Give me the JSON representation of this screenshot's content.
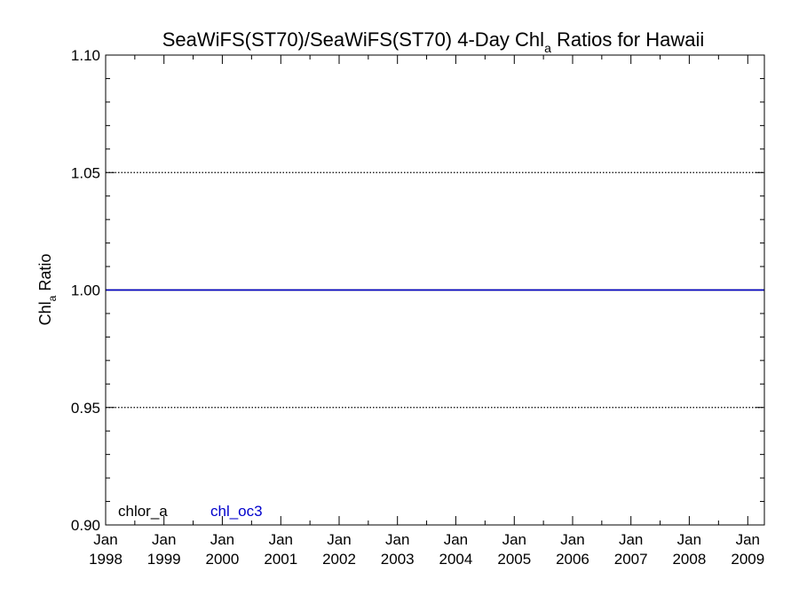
{
  "chart_data": {
    "type": "line",
    "title": {
      "main": "SeaWiFS(ST70)/SeaWiFS(ST70) 4-Day Chl",
      "sub": "a",
      "rest": " Ratios for Hawaii"
    },
    "ylabel": {
      "main": "Chl",
      "sub": "a",
      "rest": " Ratio"
    },
    "xlabel": "",
    "x_axis": {
      "type": "date",
      "range": [
        "1998-01-01",
        "2009-04-15"
      ],
      "ticks": [
        {
          "date": "1998-01-01",
          "month": "Jan",
          "year": "1998"
        },
        {
          "date": "1999-01-01",
          "month": "Jan",
          "year": "1999"
        },
        {
          "date": "2000-01-01",
          "month": "Jan",
          "year": "2000"
        },
        {
          "date": "2001-01-01",
          "month": "Jan",
          "year": "2001"
        },
        {
          "date": "2002-01-01",
          "month": "Jan",
          "year": "2002"
        },
        {
          "date": "2003-01-01",
          "month": "Jan",
          "year": "2003"
        },
        {
          "date": "2004-01-01",
          "month": "Jan",
          "year": "2004"
        },
        {
          "date": "2005-01-01",
          "month": "Jan",
          "year": "2005"
        },
        {
          "date": "2006-01-01",
          "month": "Jan",
          "year": "2006"
        },
        {
          "date": "2007-01-01",
          "month": "Jan",
          "year": "2007"
        },
        {
          "date": "2008-01-01",
          "month": "Jan",
          "year": "2008"
        },
        {
          "date": "2009-01-01",
          "month": "Jan",
          "year": "2009"
        }
      ]
    },
    "y_axis": {
      "range": [
        0.9,
        1.1
      ],
      "ticks": [
        {
          "value": 0.9,
          "label": "0.90"
        },
        {
          "value": 0.95,
          "label": "0.95"
        },
        {
          "value": 1.0,
          "label": "1.00"
        },
        {
          "value": 1.05,
          "label": "1.05"
        },
        {
          "value": 1.1,
          "label": "1.10"
        }
      ],
      "minor_step": 0.01
    },
    "grid": {
      "horizontal_dotted_at": [
        0.95,
        1.05
      ]
    },
    "series": [
      {
        "name": "chlor_a",
        "color": "#000000",
        "points": [
          {
            "x": "1998-01-01",
            "y": 1.0
          },
          {
            "x": "2009-04-15",
            "y": 1.0
          }
        ]
      },
      {
        "name": "chl_oc3",
        "color": "#0000cc",
        "points": [
          {
            "x": "1998-01-01",
            "y": 1.0
          },
          {
            "x": "2009-04-15",
            "y": 1.0
          }
        ]
      }
    ],
    "legend": {
      "placement": "bottom-left",
      "entries": [
        {
          "label": "chlor_a",
          "color": "#000000"
        },
        {
          "label": "chl_oc3",
          "color": "#0000cc"
        }
      ]
    }
  }
}
